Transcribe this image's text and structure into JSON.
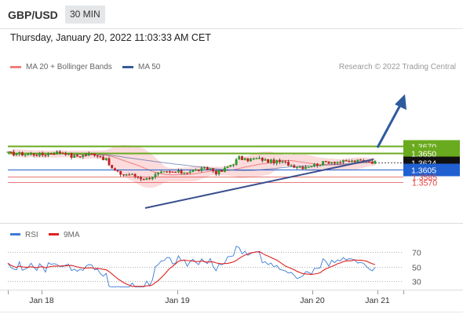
{
  "header": {
    "symbol": "GBP/USD",
    "timeframe": "30 MIN"
  },
  "timestamp": "Thursday, January 20, 2022 11:03:33 AM CET",
  "legend": {
    "ma20": {
      "label": "MA 20 + Bollinger Bands",
      "color": "#f07f7f"
    },
    "ma50": {
      "label": "MA 50",
      "color": "#3a5a98"
    }
  },
  "credit": "Research © 2022 Trading Central",
  "chart_data": {
    "type": "candlestick",
    "price_levels": [
      {
        "value": 1.367,
        "label": "1.3670",
        "kind": "target",
        "color": "#6aaa1e"
      },
      {
        "value": 1.365,
        "label": "1.3650",
        "kind": "target",
        "color": "#6aaa1e"
      },
      {
        "value": 1.3624,
        "label": "1.3624",
        "kind": "current",
        "color": "#111111"
      },
      {
        "value": 1.3605,
        "label": "1.3605",
        "kind": "pivot",
        "color": "#2060d0"
      },
      {
        "value": 1.3585,
        "label": "1.3585",
        "kind": "support",
        "color": "#e04040"
      },
      {
        "value": 1.357,
        "label": "1.3570",
        "kind": "support",
        "color": "#e04040"
      }
    ],
    "x_tick_labels": [
      "Jan 18",
      "Jan 19",
      "Jan 20",
      "Jan 21"
    ],
    "candles_count": 128,
    "rsi": {
      "legend": [
        {
          "label": "RSI",
          "color": "#3a7bd5"
        },
        {
          "label": "9MA",
          "color": "#e02020"
        }
      ],
      "levels": [
        "70",
        "50",
        "30"
      ],
      "ylim": [
        10,
        85
      ]
    },
    "colors": {
      "up": "#2a9e2a",
      "down": "#c81e1e",
      "band": "#f9cfd0"
    }
  }
}
